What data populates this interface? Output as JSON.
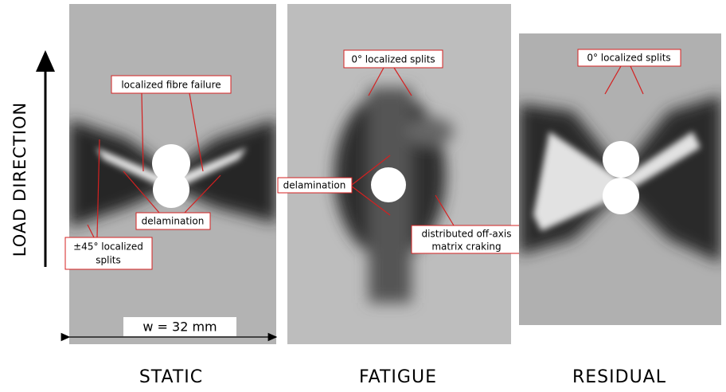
{
  "load_direction": "LOAD DIRECTION",
  "panels": [
    {
      "caption": "STATIC",
      "scale_label": "w = 32 mm",
      "annotations": [
        {
          "lines": [
            "localized fibre failure"
          ]
        },
        {
          "lines": [
            "delamination"
          ]
        },
        {
          "lines": [
            "±45° localized",
            "splits"
          ]
        }
      ]
    },
    {
      "caption": "FATIGUE",
      "annotations": [
        {
          "lines": [
            "0° localized splits"
          ]
        },
        {
          "lines": [
            "delamination"
          ]
        },
        {
          "lines": [
            "distributed off-axis",
            "matrix craking"
          ]
        }
      ]
    },
    {
      "caption": "RESIDUAL",
      "annotations": [
        {
          "lines": [
            "0° localized splits"
          ]
        }
      ]
    }
  ]
}
